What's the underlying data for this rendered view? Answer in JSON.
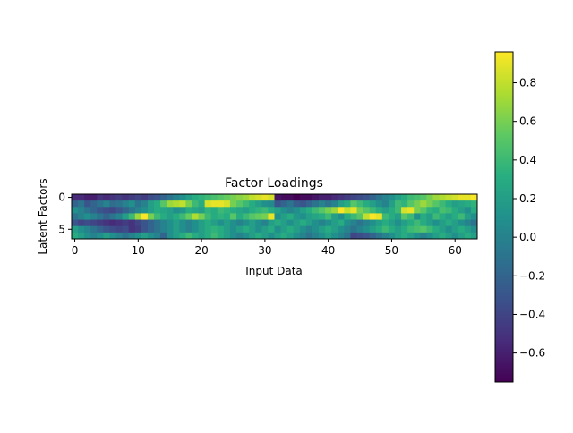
{
  "chart_data": {
    "type": "heatmap",
    "title": "Factor Loadings",
    "xlabel": "Input Data",
    "ylabel": "Latent Factors",
    "xlim": [
      -0.5,
      63.5
    ],
    "ylim": [
      6.5,
      -0.5
    ],
    "x_ticks": [
      0,
      10,
      20,
      30,
      40,
      50,
      60
    ],
    "y_ticks": [
      0,
      5
    ],
    "n_rows": 7,
    "n_cols": 64,
    "colormap": "viridis",
    "colorbar": {
      "vmin": -0.75,
      "vmax": 0.96,
      "ticks": [
        -0.6,
        -0.4,
        -0.2,
        0.0,
        0.2,
        0.4,
        0.6,
        0.8
      ],
      "tick_labels": [
        "−0.6",
        "−0.4",
        "−0.2",
        "0.0",
        "0.2",
        "0.4",
        "0.6",
        "0.8"
      ]
    },
    "values": [
      [
        -0.55,
        -0.55,
        -0.6,
        -0.6,
        -0.5,
        -0.55,
        -0.5,
        -0.45,
        -0.5,
        -0.45,
        -0.4,
        -0.45,
        -0.35,
        -0.3,
        -0.2,
        -0.1,
        0.0,
        0.1,
        0.2,
        0.3,
        0.35,
        0.4,
        0.45,
        0.5,
        0.55,
        0.6,
        0.65,
        0.7,
        0.8,
        0.85,
        0.9,
        0.85,
        -0.65,
        -0.7,
        -0.7,
        -0.75,
        -0.7,
        -0.7,
        -0.65,
        -0.6,
        -0.6,
        -0.55,
        -0.5,
        -0.45,
        -0.4,
        -0.35,
        -0.3,
        -0.2,
        -0.1,
        0.0,
        0.1,
        0.2,
        0.3,
        0.4,
        0.45,
        0.5,
        0.6,
        0.7,
        0.75,
        0.8,
        0.85,
        0.9,
        0.9,
        0.95
      ],
      [
        -0.2,
        -0.1,
        -0.3,
        -0.2,
        -0.1,
        0.0,
        -0.15,
        -0.1,
        0.0,
        0.1,
        -0.1,
        0.0,
        0.2,
        0.3,
        0.5,
        0.7,
        0.75,
        0.8,
        0.6,
        0.4,
        0.3,
        0.85,
        0.9,
        0.9,
        0.85,
        0.6,
        0.5,
        0.4,
        0.3,
        0.2,
        0.1,
        0.05,
        -0.3,
        -0.2,
        -0.1,
        -0.25,
        -0.3,
        -0.2,
        -0.1,
        0.0,
        -0.1,
        0.0,
        0.2,
        0.3,
        0.5,
        0.4,
        0.3,
        0.2,
        0.1,
        0.0,
        0.2,
        0.4,
        0.35,
        0.5,
        0.6,
        0.7,
        0.6,
        0.5,
        0.4,
        0.3,
        0.2,
        0.25,
        0.3,
        0.35
      ],
      [
        0.1,
        0.0,
        -0.1,
        -0.2,
        -0.3,
        -0.35,
        -0.4,
        -0.3,
        -0.2,
        -0.1,
        0.0,
        0.1,
        0.2,
        0.3,
        0.25,
        0.2,
        0.1,
        0.15,
        0.3,
        0.25,
        0.2,
        0.35,
        0.3,
        0.4,
        0.35,
        0.3,
        0.25,
        0.2,
        0.3,
        0.35,
        0.4,
        0.3,
        0.2,
        0.1,
        0.0,
        0.1,
        0.2,
        0.3,
        0.4,
        0.5,
        0.6,
        0.7,
        0.95,
        0.8,
        0.9,
        0.6,
        0.5,
        0.4,
        0.3,
        0.2,
        0.3,
        0.4,
        0.85,
        0.9,
        0.6,
        0.5,
        0.35,
        0.3,
        0.45,
        0.4,
        0.3,
        0.2,
        0.1,
        0.3
      ],
      [
        -0.1,
        0.0,
        0.1,
        0.0,
        -0.1,
        -0.2,
        -0.1,
        0.0,
        0.2,
        0.4,
        0.7,
        0.95,
        0.6,
        0.4,
        0.3,
        0.2,
        0.3,
        0.4,
        0.55,
        0.75,
        0.6,
        0.4,
        0.3,
        0.35,
        0.3,
        0.5,
        0.3,
        0.4,
        0.5,
        0.55,
        0.6,
        0.9,
        0.1,
        0.2,
        0.3,
        0.15,
        0.1,
        0.2,
        0.25,
        0.3,
        0.4,
        0.2,
        0.1,
        0.3,
        0.4,
        0.5,
        0.8,
        0.95,
        0.9,
        0.4,
        0.3,
        0.2,
        0.5,
        0.4,
        0.1,
        0.3,
        0.2,
        0.4,
        0.3,
        0.2,
        0.3,
        0.4,
        0.2,
        0.1
      ],
      [
        -0.3,
        -0.4,
        -0.35,
        -0.4,
        -0.45,
        -0.5,
        -0.55,
        -0.5,
        -0.45,
        -0.5,
        -0.4,
        -0.3,
        -0.2,
        -0.1,
        0.0,
        0.1,
        0.2,
        0.1,
        0.0,
        0.1,
        0.2,
        0.3,
        0.2,
        0.1,
        0.2,
        0.1,
        0.0,
        0.1,
        0.2,
        0.1,
        0.0,
        0.2,
        0.3,
        0.2,
        0.1,
        0.2,
        0.3,
        0.2,
        0.1,
        0.0,
        0.1,
        0.2,
        0.3,
        0.1,
        0.0,
        -0.1,
        0.0,
        0.1,
        0.2,
        0.3,
        0.2,
        0.1,
        0.2,
        0.3,
        0.4,
        0.3,
        0.2,
        0.1,
        0.2,
        0.3,
        0.2,
        0.1,
        0.0,
        -0.1
      ],
      [
        0.2,
        0.1,
        0.0,
        -0.1,
        -0.2,
        -0.3,
        -0.35,
        -0.4,
        -0.35,
        -0.5,
        -0.45,
        -0.3,
        -0.2,
        -0.1,
        0.0,
        0.1,
        0.2,
        0.1,
        0.0,
        0.1,
        0.2,
        0.3,
        0.35,
        0.3,
        0.2,
        0.1,
        0.2,
        0.3,
        0.2,
        0.1,
        0.2,
        0.3,
        0.1,
        0.2,
        0.3,
        0.2,
        0.1,
        0.0,
        0.1,
        0.2,
        0.3,
        0.2,
        0.1,
        0.0,
        -0.1,
        0.0,
        0.1,
        0.2,
        0.3,
        0.4,
        0.3,
        0.2,
        0.3,
        0.4,
        0.45,
        0.5,
        0.4,
        0.3,
        0.2,
        0.1,
        0.2,
        0.3,
        0.2,
        0.1
      ],
      [
        0.3,
        0.2,
        0.1,
        0.0,
        0.1,
        0.2,
        0.1,
        0.0,
        -0.1,
        0.0,
        0.1,
        0.2,
        0.1,
        0.0,
        -0.2,
        0.1,
        0.2,
        0.3,
        0.4,
        0.3,
        0.2,
        0.3,
        0.4,
        0.3,
        0.2,
        0.1,
        0.0,
        0.1,
        0.2,
        0.3,
        0.2,
        0.1,
        0.2,
        0.3,
        0.2,
        0.1,
        0.0,
        -0.1,
        0.0,
        0.1,
        0.2,
        0.1,
        0.0,
        -0.1,
        -0.4,
        -0.35,
        -0.3,
        -0.2,
        -0.1,
        0.0,
        0.1,
        0.2,
        0.3,
        0.2,
        0.1,
        0.0,
        0.1,
        0.2,
        0.3,
        0.2,
        0.1,
        0.2,
        0.3,
        0.2
      ]
    ]
  }
}
